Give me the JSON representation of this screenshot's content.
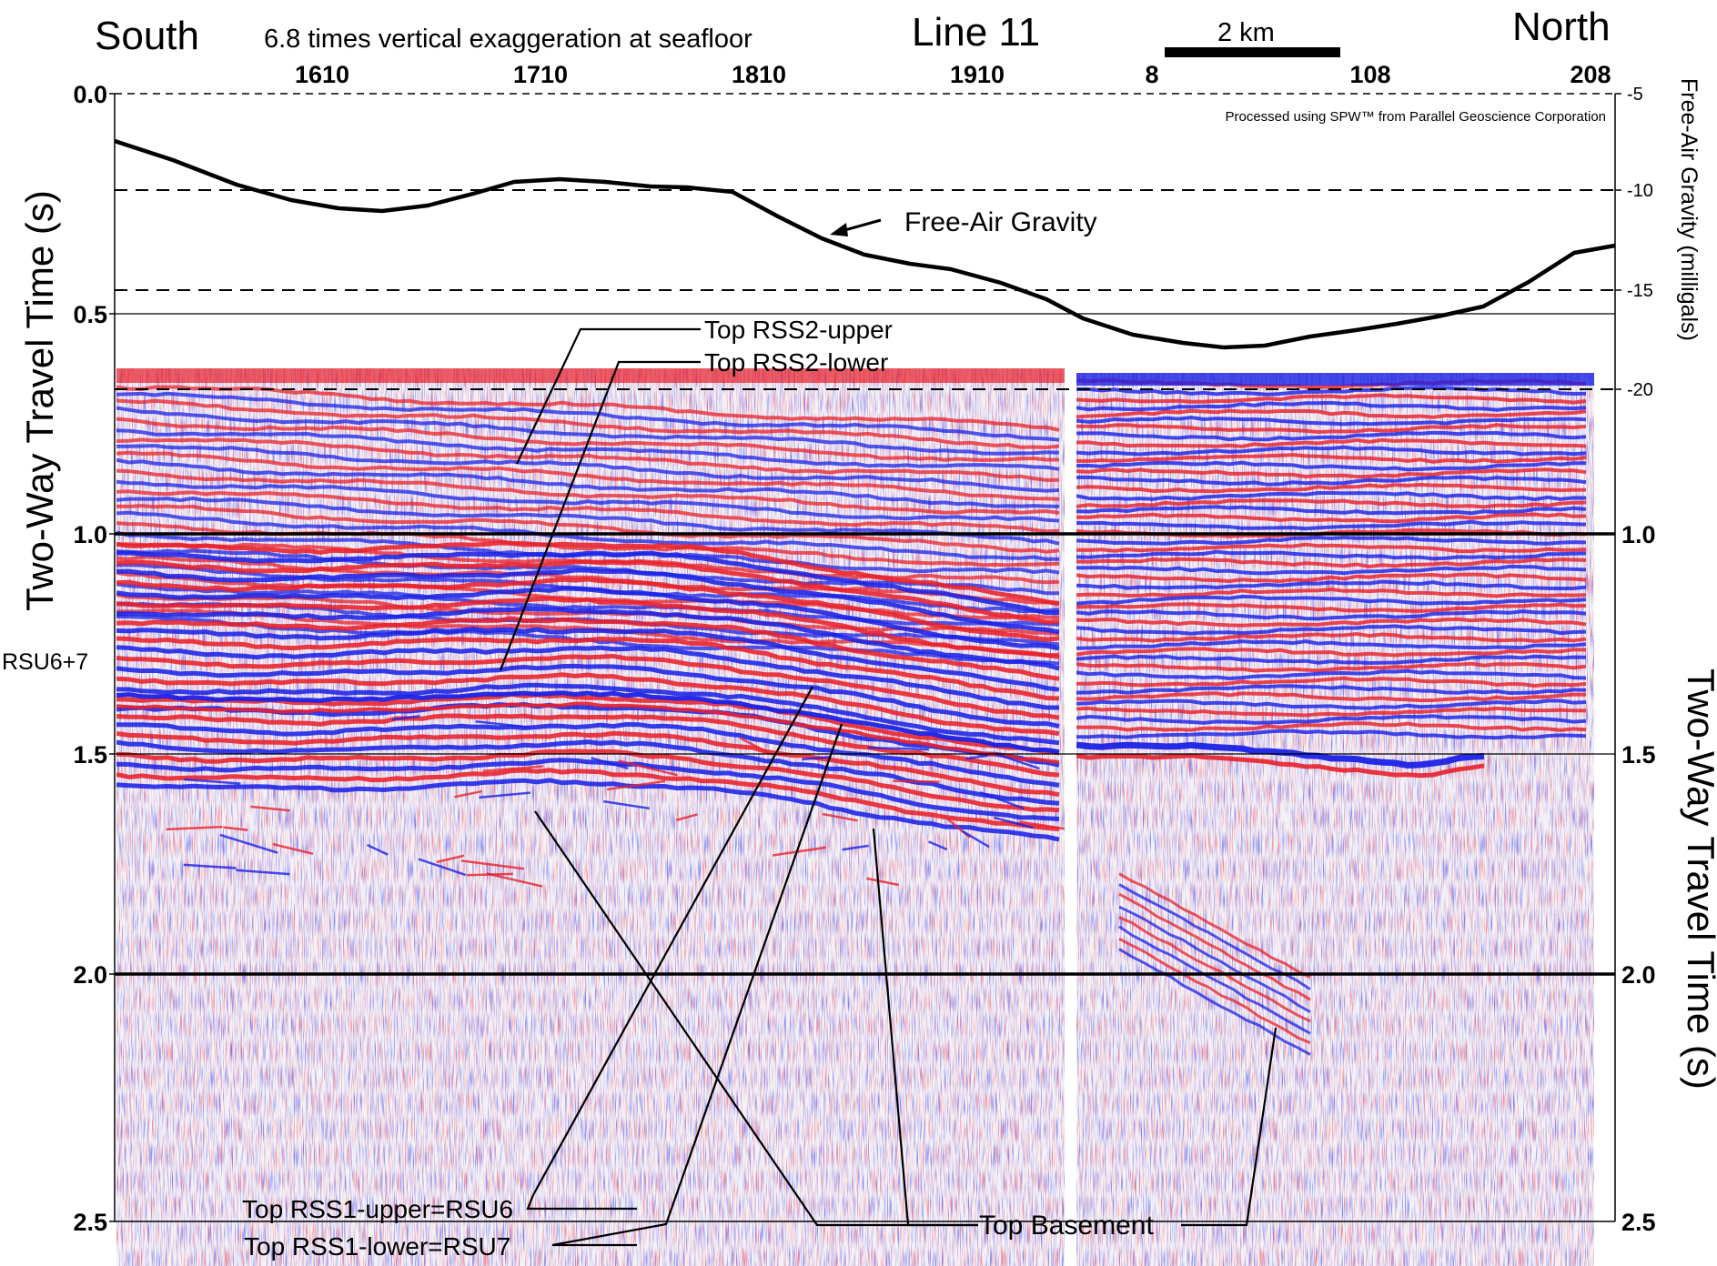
{
  "header": {
    "south": "South",
    "exaggeration": "6.8 times vertical exaggeration at seafloor",
    "line": "Line 11",
    "scale": "2 km",
    "north": "North"
  },
  "credit": "Processed using SPW™ from Parallel Geoscience Corporation",
  "shotpoints_left": [
    "1610",
    "1710",
    "1810",
    "1910"
  ],
  "shotpoints_right": [
    "8",
    "108",
    "208"
  ],
  "left_axis": {
    "title": "Two-Way Travel Time (s)",
    "ticks": [
      "0.0",
      "0.5",
      "1.0",
      "1.5",
      "2.0",
      "2.5"
    ]
  },
  "right_axis": {
    "title": "Two-Way Travel Time (s)",
    "ticks": [
      "1.0",
      "1.5",
      "2.0",
      "2.5"
    ]
  },
  "gravity_axis": {
    "title": "Free-Air Gravity (milligals)",
    "ticks": [
      "-5",
      "-10",
      "-15",
      "-20"
    ]
  },
  "gravity_curve_label": "Free-Air Gravity",
  "horizon_labels": {
    "rss2_upper": "Top RSS2-upper",
    "rss2_lower": "Top RSS2-lower",
    "rsu67": "RSU6+7",
    "rss1_upper": "Top RSS1-upper=RSU6",
    "rss1_lower": "Top RSS1-lower=RSU7",
    "basement": "Top Basement"
  },
  "colors": {
    "positive": "#e8202a",
    "negative": "#1a22e6",
    "ink": "#000000"
  }
}
